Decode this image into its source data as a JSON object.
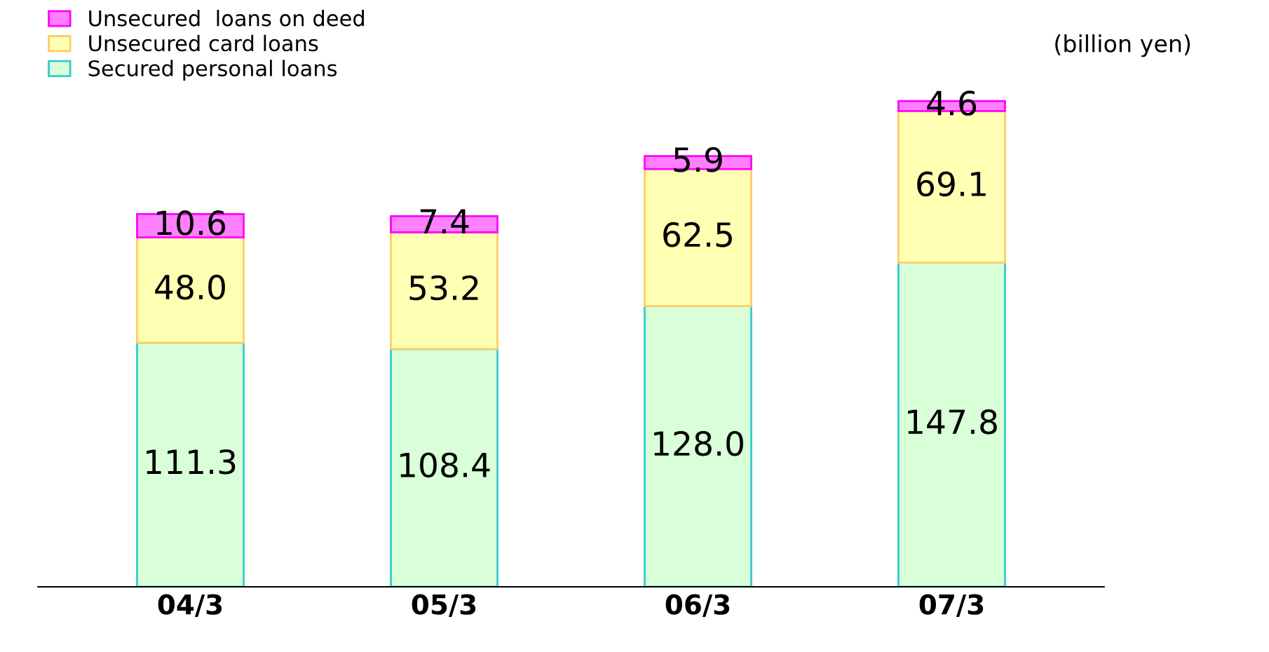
{
  "chart_data": {
    "type": "bar",
    "stacked": true,
    "legend": "top left",
    "categories": [
      "04/3",
      "05/3",
      "06/3",
      "07/3"
    ],
    "series": [
      {
        "name": "Secured personal loans",
        "color": "#d9ffd9",
        "values": [
          111.3,
          108.4,
          128.0,
          147.8
        ],
        "value_labels": [
          "111.3",
          "108.4",
          "128.0",
          "147.8"
        ]
      },
      {
        "name": "Unsecured card loans",
        "color": "#ffffb3",
        "values": [
          48.0,
          53.2,
          62.5,
          69.1
        ],
        "value_labels": [
          "48.0",
          "53.2",
          "62.5",
          "69.1"
        ]
      },
      {
        "name": "Unsecured  loans on deed",
        "color": "#ff80ff",
        "values": [
          10.6,
          7.4,
          5.9,
          4.6
        ],
        "value_labels": [
          "10.6",
          "7.4",
          "5.9",
          "4.6"
        ]
      }
    ],
    "annotations": [
      "(billion yen)"
    ]
  }
}
